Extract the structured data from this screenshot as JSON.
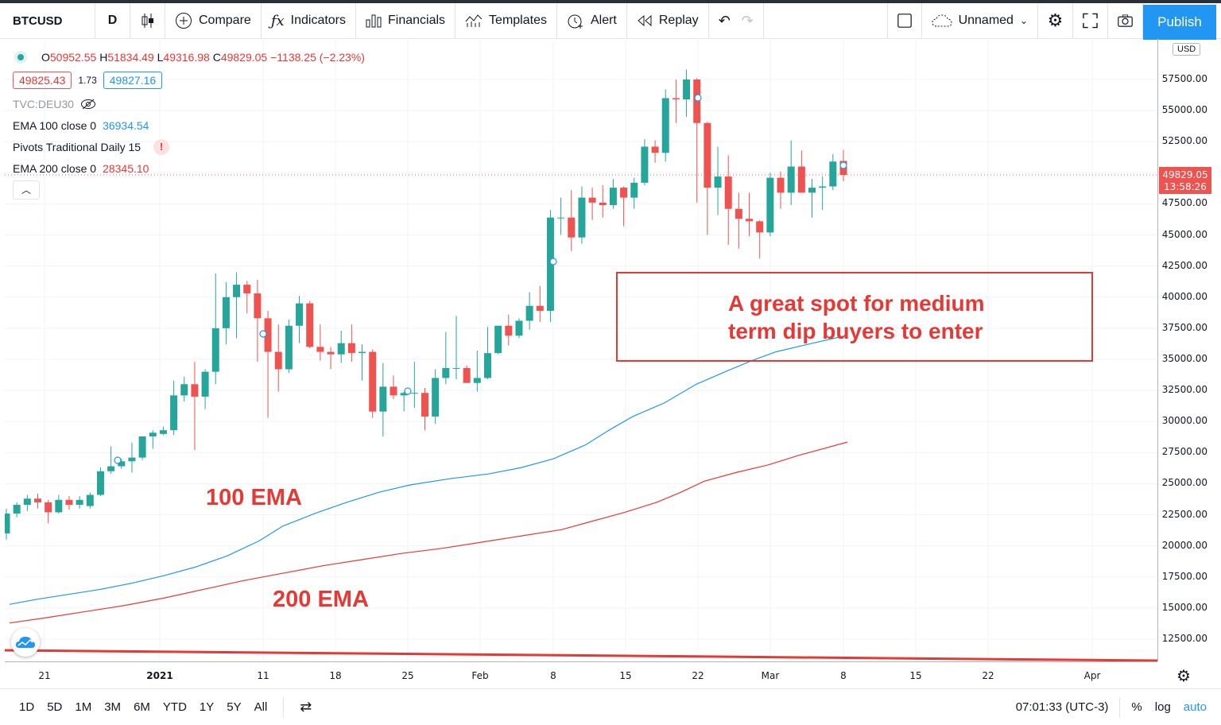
{
  "toolbar": {
    "symbol": "BTCUSD",
    "interval": "D",
    "compare": "Compare",
    "indicators": "Indicators",
    "financials": "Financials",
    "templates": "Templates",
    "alert": "Alert",
    "replay": "Replay",
    "layout_name": "Unnamed",
    "publish": "Publish"
  },
  "legend": {
    "ohlc_o_label": "O",
    "ohlc_o": "50952.55",
    "ohlc_h_label": "H",
    "ohlc_h": "51834.49",
    "ohlc_l_label": "L",
    "ohlc_l": "49316.98",
    "ohlc_c_label": "C",
    "ohlc_c": "49829.05",
    "change": "−1138.25 (−2.23%)",
    "bid": "49825.43",
    "spread": "1.73",
    "ask": "49827.16",
    "compare_symbol": "TVC:DEU30",
    "ema100_label": "EMA 100 close 0",
    "ema100_value": "36934.54",
    "pivots_label": "Pivots Traditional Daily 15",
    "ema200_label": "EMA 200 close 0",
    "ema200_value": "28345.10"
  },
  "price_axis": {
    "currency": "USD",
    "ticks": [
      "57500.00",
      "55000.00",
      "52500.00",
      "47500.00",
      "45000.00",
      "42500.00",
      "40000.00",
      "37500.00",
      "35000.00",
      "32500.00",
      "30000.00",
      "27500.00",
      "25000.00",
      "22500.00",
      "20000.00",
      "17500.00",
      "15000.00",
      "12500.00"
    ],
    "last_price": "49829.05",
    "countdown": "13:58:26"
  },
  "time_axis": {
    "ticks": [
      "21",
      "2021",
      "11",
      "18",
      "25",
      "Feb",
      "8",
      "15",
      "22",
      "Mar",
      "8",
      "15",
      "22",
      "Apr"
    ]
  },
  "annotations": {
    "box_line1": "A great spot for medium",
    "box_line2": "term dip buyers to enter",
    "ema100": "100 EMA",
    "ema200": "200 EMA"
  },
  "bottom": {
    "ranges": [
      "1D",
      "5D",
      "1M",
      "3M",
      "6M",
      "YTD",
      "1Y",
      "5Y",
      "All"
    ],
    "clock": "07:01:33 (UTC-3)",
    "percent": "%",
    "log": "log",
    "auto": "auto"
  },
  "colors": {
    "up": "#26a69a",
    "down": "#ef5350",
    "ema100": "#2196f3",
    "ema200": "#e53935",
    "accent": "#2196f3"
  },
  "chart_data": {
    "type": "candlestick",
    "ylim": [
      11000,
      60500
    ],
    "candles": [
      {
        "o": 21000,
        "h": 23000,
        "l": 20500,
        "c": 22600
      },
      {
        "o": 22600,
        "h": 23500,
        "l": 22300,
        "c": 23300
      },
      {
        "o": 23300,
        "h": 24100,
        "l": 22800,
        "c": 23800
      },
      {
        "o": 23800,
        "h": 24200,
        "l": 23000,
        "c": 23500
      },
      {
        "o": 23500,
        "h": 23700,
        "l": 21800,
        "c": 22700
      },
      {
        "o": 22700,
        "h": 24100,
        "l": 22600,
        "c": 23700
      },
      {
        "o": 23700,
        "h": 24000,
        "l": 22900,
        "c": 23300
      },
      {
        "o": 23300,
        "h": 24000,
        "l": 23000,
        "c": 23700
      },
      {
        "o": 23200,
        "h": 24300,
        "l": 23000,
        "c": 24100
      },
      {
        "o": 24100,
        "h": 26300,
        "l": 24000,
        "c": 26000
      },
      {
        "o": 26000,
        "h": 28000,
        "l": 25800,
        "c": 26400
      },
      {
        "o": 26400,
        "h": 27000,
        "l": 26200,
        "c": 26800
      },
      {
        "o": 26800,
        "h": 28300,
        "l": 25900,
        "c": 27100
      },
      {
        "o": 27100,
        "h": 28800,
        "l": 26900,
        "c": 28800
      },
      {
        "o": 28800,
        "h": 29300,
        "l": 27800,
        "c": 29100
      },
      {
        "o": 29000,
        "h": 29600,
        "l": 28900,
        "c": 29300
      },
      {
        "o": 29300,
        "h": 33300,
        "l": 28900,
        "c": 32100
      },
      {
        "o": 32100,
        "h": 33600,
        "l": 31600,
        "c": 33000
      },
      {
        "o": 33000,
        "h": 34800,
        "l": 27700,
        "c": 32000
      },
      {
        "o": 32000,
        "h": 34200,
        "l": 31000,
        "c": 34000
      },
      {
        "o": 34000,
        "h": 41900,
        "l": 33000,
        "c": 37500
      },
      {
        "o": 37500,
        "h": 41200,
        "l": 36200,
        "c": 40000
      },
      {
        "o": 40000,
        "h": 42000,
        "l": 36700,
        "c": 41000
      },
      {
        "o": 41000,
        "h": 41300,
        "l": 38700,
        "c": 40300
      },
      {
        "o": 40300,
        "h": 41400,
        "l": 34800,
        "c": 38300
      },
      {
        "o": 38300,
        "h": 38900,
        "l": 30300,
        "c": 35600
      },
      {
        "o": 35600,
        "h": 37800,
        "l": 32400,
        "c": 34200
      },
      {
        "o": 34200,
        "h": 38200,
        "l": 33900,
        "c": 37700
      },
      {
        "o": 37700,
        "h": 40100,
        "l": 36300,
        "c": 39500
      },
      {
        "o": 39500,
        "h": 39700,
        "l": 35900,
        "c": 36000
      },
      {
        "o": 36000,
        "h": 37800,
        "l": 34900,
        "c": 35600
      },
      {
        "o": 35600,
        "h": 36000,
        "l": 34200,
        "c": 35400
      },
      {
        "o": 35400,
        "h": 37300,
        "l": 34700,
        "c": 36300
      },
      {
        "o": 36300,
        "h": 37800,
        "l": 34800,
        "c": 35500
      },
      {
        "o": 35500,
        "h": 36200,
        "l": 33300,
        "c": 35600
      },
      {
        "o": 35600,
        "h": 35800,
        "l": 30300,
        "c": 30800
      },
      {
        "o": 30800,
        "h": 34700,
        "l": 28800,
        "c": 32800
      },
      {
        "o": 32800,
        "h": 33700,
        "l": 31800,
        "c": 32100
      },
      {
        "o": 32100,
        "h": 32400,
        "l": 30800,
        "c": 32300
      },
      {
        "o": 32300,
        "h": 34800,
        "l": 31100,
        "c": 32300
      },
      {
        "o": 32300,
        "h": 32700,
        "l": 29300,
        "c": 30400
      },
      {
        "o": 30400,
        "h": 34200,
        "l": 29800,
        "c": 33500
      },
      {
        "o": 33500,
        "h": 37200,
        "l": 33000,
        "c": 34300
      },
      {
        "o": 34300,
        "h": 38500,
        "l": 33400,
        "c": 34300
      },
      {
        "o": 34300,
        "h": 34500,
        "l": 33200,
        "c": 33100
      },
      {
        "o": 33100,
        "h": 35700,
        "l": 32400,
        "c": 33500
      },
      {
        "o": 33500,
        "h": 37600,
        "l": 33400,
        "c": 35500
      },
      {
        "o": 35500,
        "h": 37700,
        "l": 35400,
        "c": 37700
      },
      {
        "o": 37700,
        "h": 38600,
        "l": 36100,
        "c": 36900
      },
      {
        "o": 36900,
        "h": 38300,
        "l": 36700,
        "c": 38100
      },
      {
        "o": 38100,
        "h": 40400,
        "l": 37400,
        "c": 39300
      },
      {
        "o": 39300,
        "h": 40900,
        "l": 38000,
        "c": 38900
      },
      {
        "o": 38900,
        "h": 47000,
        "l": 38000,
        "c": 46400
      },
      {
        "o": 46400,
        "h": 48000,
        "l": 45000,
        "c": 46400
      },
      {
        "o": 46400,
        "h": 48600,
        "l": 43700,
        "c": 44800
      },
      {
        "o": 44800,
        "h": 48900,
        "l": 44300,
        "c": 48000
      },
      {
        "o": 48000,
        "h": 48800,
        "l": 46200,
        "c": 47600
      },
      {
        "o": 47600,
        "h": 49000,
        "l": 46400,
        "c": 47400
      },
      {
        "o": 47400,
        "h": 49500,
        "l": 47100,
        "c": 48800
      },
      {
        "o": 48800,
        "h": 48900,
        "l": 45700,
        "c": 48000
      },
      {
        "o": 48000,
        "h": 49600,
        "l": 47100,
        "c": 49200
      },
      {
        "o": 49200,
        "h": 52700,
        "l": 49000,
        "c": 52100
      },
      {
        "o": 52100,
        "h": 52600,
        "l": 50800,
        "c": 51600
      },
      {
        "o": 51600,
        "h": 56700,
        "l": 50900,
        "c": 56000
      },
      {
        "o": 56000,
        "h": 57500,
        "l": 54000,
        "c": 55900
      },
      {
        "o": 55900,
        "h": 58300,
        "l": 54500,
        "c": 57500
      },
      {
        "o": 57500,
        "h": 57600,
        "l": 47600,
        "c": 54000
      },
      {
        "o": 54000,
        "h": 54100,
        "l": 45000,
        "c": 48800
      },
      {
        "o": 48800,
        "h": 52100,
        "l": 46600,
        "c": 49700
      },
      {
        "o": 49700,
        "h": 51400,
        "l": 44200,
        "c": 47100
      },
      {
        "o": 47100,
        "h": 48400,
        "l": 43900,
        "c": 46300
      },
      {
        "o": 46300,
        "h": 48400,
        "l": 44900,
        "c": 46100
      },
      {
        "o": 46100,
        "h": 46200,
        "l": 43100,
        "c": 45200
      },
      {
        "o": 45200,
        "h": 50000,
        "l": 44900,
        "c": 49600
      },
      {
        "o": 49600,
        "h": 50100,
        "l": 47100,
        "c": 48400
      },
      {
        "o": 48400,
        "h": 52600,
        "l": 47400,
        "c": 50500
      },
      {
        "o": 50500,
        "h": 51800,
        "l": 48400,
        "c": 48400
      },
      {
        "o": 48400,
        "h": 49500,
        "l": 46400,
        "c": 48800
      },
      {
        "o": 48800,
        "h": 49700,
        "l": 47000,
        "c": 48900
      },
      {
        "o": 48900,
        "h": 51500,
        "l": 48600,
        "c": 50900
      },
      {
        "o": 50952.55,
        "h": 51834.49,
        "l": 49316.98,
        "c": 49829.05
      }
    ],
    "ema100": [
      15300,
      15700,
      16100,
      16500,
      17000,
      17600,
      18300,
      19200,
      20400,
      21600,
      22600,
      23500,
      24300,
      24900,
      25400,
      25800,
      26300,
      27000,
      28100,
      29300,
      30400,
      31500,
      33000,
      34100,
      34900,
      35600,
      36200,
      36934.54
    ],
    "ema200": [
      13800,
      14200,
      14700,
      15200,
      15800,
      16500,
      17200,
      17800,
      18400,
      18900,
      19400,
      19800,
      20300,
      20800,
      21300,
      22000,
      22700,
      23500,
      24300,
      25200,
      25900,
      26500,
      27300,
      28345.1
    ],
    "ema100_x": [
      6,
      40,
      80,
      120,
      160,
      200,
      240,
      280,
      320,
      350,
      390,
      430,
      470,
      510,
      560,
      610,
      650,
      690,
      730,
      760,
      790,
      830,
      870,
      910,
      940,
      970,
      1010,
      1060
    ],
    "ema200_x": [
      6,
      50,
      100,
      150,
      200,
      250,
      300,
      350,
      400,
      450,
      500,
      550,
      600,
      650,
      700,
      740,
      780,
      820,
      850,
      880,
      920,
      960,
      1000,
      1060
    ]
  }
}
